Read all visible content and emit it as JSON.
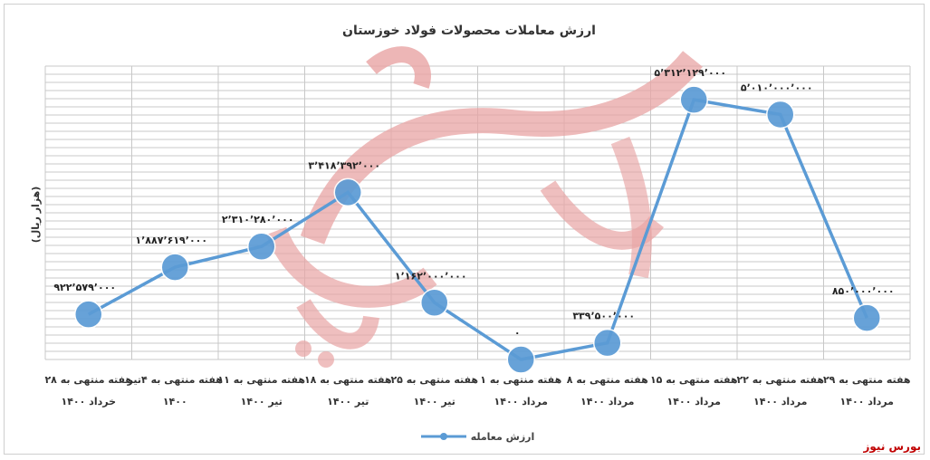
{
  "chart_data": {
    "type": "line",
    "title": "ارزش معاملات محصولات فولاد خوزستان",
    "ylabel": "(هزار ریال)",
    "xlabel": "",
    "ylim": [
      0,
      6000000
    ],
    "grid": true,
    "legend": "bottom",
    "categories": [
      [
        "هفته منتهی به ۲۸",
        "خرداد ۱۴۰۰"
      ],
      [
        "هفته منتهی به ۴تیر",
        "۱۴۰۰"
      ],
      [
        "هفته منتهی به ۱۱",
        "تیر ۱۴۰۰"
      ],
      [
        "هفته منتهی به ۱۸",
        "تیر ۱۴۰۰"
      ],
      [
        "هفته منتهی به ۲۵",
        "تیر ۱۴۰۰"
      ],
      [
        "هفته منتهی به ۱",
        "مرداد ۱۴۰۰"
      ],
      [
        "هفته منتهی به ۸",
        "مرداد ۱۴۰۰"
      ],
      [
        "هفته منتهی به ۱۵",
        "مرداد ۱۴۰۰"
      ],
      [
        "هفته منتهی به ۲۲",
        "مرداد ۱۴۰۰"
      ],
      [
        "هفته منتهی به ۲۹",
        "مرداد ۱۴۰۰"
      ]
    ],
    "series": [
      {
        "name": "ارزش معامله",
        "values": [
          922579000,
          1887619000,
          2310280000,
          3418392000,
          1162000000,
          0,
          339500000,
          5312129000,
          5010000000,
          850000000
        ],
        "labels": [
          "۹۲۲٬۵۷۹٬۰۰۰",
          "۱٬۸۸۷٬۶۱۹٬۰۰۰",
          "۲٬۳۱۰٬۲۸۰٬۰۰۰",
          "۳٬۴۱۸٬۳۹۲٬۰۰۰",
          "۱٬۱۶۲٬۰۰۰٬۰۰۰",
          "۰",
          "۳۳۹٬۵۰۰٬۰۰۰",
          "۵٬۳۱۲٬۱۲۹٬۰۰۰",
          "۵٬۰۱۰٬۰۰۰٬۰۰۰",
          "۸۵۰٬۰۰۰٬۰۰۰"
        ],
        "color": "#5B9BD5"
      }
    ]
  },
  "watermark": {
    "text": "بورس نیوز",
    "color": "#E8A4A4"
  },
  "source": {
    "text": "بورس نیوز",
    "color": "#C00000"
  }
}
